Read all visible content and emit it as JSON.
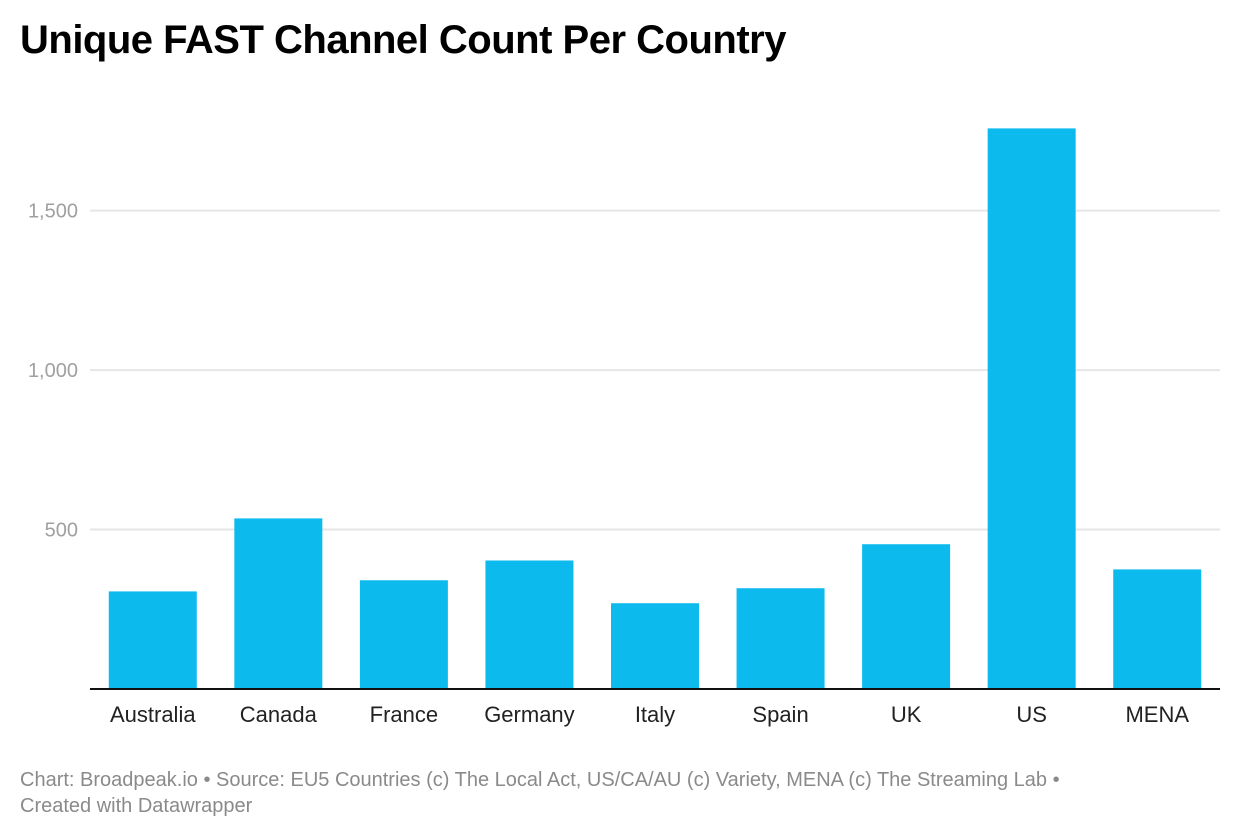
{
  "chart_data": {
    "type": "bar",
    "title": "Unique FAST Channel Count Per Country",
    "categories": [
      "Australia",
      "Canada",
      "France",
      "Germany",
      "Italy",
      "Spain",
      "UK",
      "US",
      "MENA"
    ],
    "values": [
      306,
      535,
      341,
      403,
      269,
      316,
      454,
      1758,
      375
    ],
    "ylim": [
      0,
      1800
    ],
    "yticks": [
      500,
      1000,
      1500
    ],
    "ytick_labels": [
      "500",
      "1,000",
      "1,500"
    ],
    "xlabel": "",
    "ylabel": "",
    "grid": true,
    "bar_color": "#0cbaee"
  },
  "footer": {
    "line1": "Chart: Broadpeak.io • Source: EU5 Countries (c) The Local Act, US/CA/AU (c) Variety, MENA (c) The Streaming Lab •",
    "line2": "Created with Datawrapper"
  }
}
